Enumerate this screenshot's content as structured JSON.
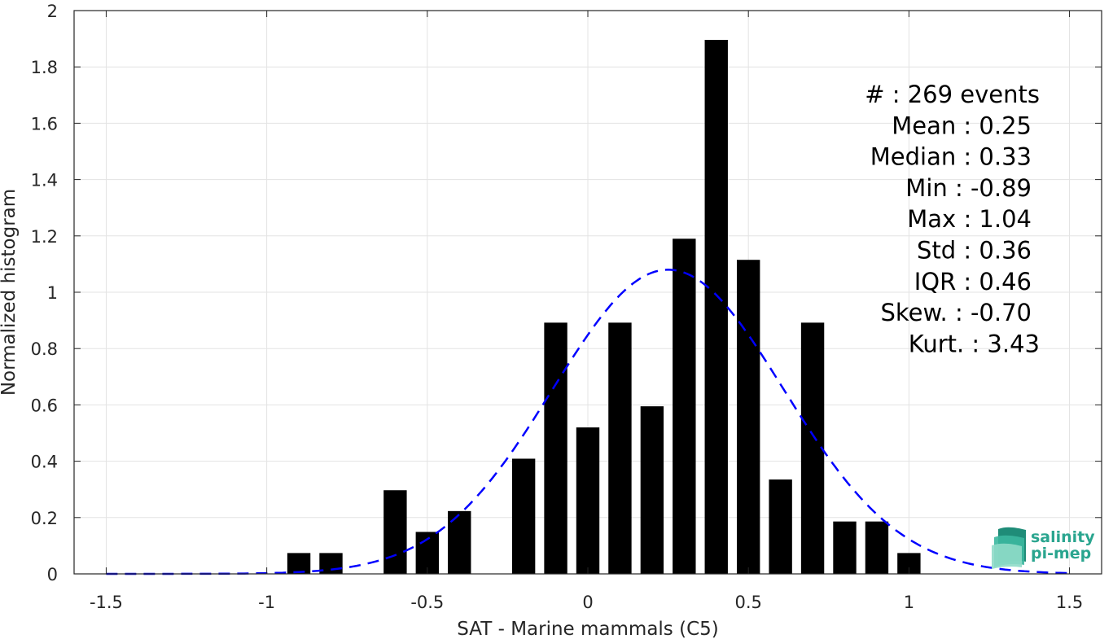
{
  "chart_data": {
    "type": "bar",
    "title": "",
    "xlabel": "SAT - Marine mammals (C5)",
    "ylabel": "Normalized histogram",
    "xlim": [
      -1.6,
      1.6
    ],
    "ylim": [
      0,
      2
    ],
    "grid": true,
    "x_ticks": [
      "-1.5",
      "-1",
      "-0.5",
      "0",
      "0.5",
      "1",
      "1.5"
    ],
    "y_ticks": [
      "0",
      "0.2",
      "0.4",
      "0.6",
      "0.8",
      "1",
      "1.2",
      "1.4",
      "1.6",
      "1.8",
      "2"
    ],
    "bin_width": 0.1,
    "bar_color": "#000000",
    "bars": [
      {
        "x": -0.9,
        "y": 0.074
      },
      {
        "x": -0.8,
        "y": 0.074
      },
      {
        "x": -0.6,
        "y": 0.297
      },
      {
        "x": -0.5,
        "y": 0.149
      },
      {
        "x": -0.4,
        "y": 0.223
      },
      {
        "x": -0.2,
        "y": 0.409
      },
      {
        "x": -0.1,
        "y": 0.892
      },
      {
        "x": 0.0,
        "y": 0.52
      },
      {
        "x": 0.1,
        "y": 0.892
      },
      {
        "x": 0.2,
        "y": 0.595
      },
      {
        "x": 0.3,
        "y": 1.19
      },
      {
        "x": 0.4,
        "y": 1.896
      },
      {
        "x": 0.5,
        "y": 1.115
      },
      {
        "x": 0.6,
        "y": 0.335
      },
      {
        "x": 0.7,
        "y": 0.892
      },
      {
        "x": 0.8,
        "y": 0.186
      },
      {
        "x": 0.9,
        "y": 0.186
      },
      {
        "x": 1.0,
        "y": 0.074
      }
    ],
    "fit_curve": {
      "style": "dashed",
      "color": "#0000ff",
      "mean": 0.25,
      "std": 0.36,
      "amplitude": 1.08,
      "x_range": [
        -1.5,
        1.5
      ]
    },
    "stats_box": [
      "#  : 269 events",
      "Mean : 0.25",
      "Median : 0.33",
      "Min : -0.89",
      "Max : 1.04",
      "Std : 0.36",
      "IQR : 0.46",
      "Skew. : -0.70",
      "Kurt. : 3.43"
    ]
  },
  "logo": {
    "line1": "salinity",
    "line2": "pi-mep",
    "color": "#2aa58f"
  }
}
